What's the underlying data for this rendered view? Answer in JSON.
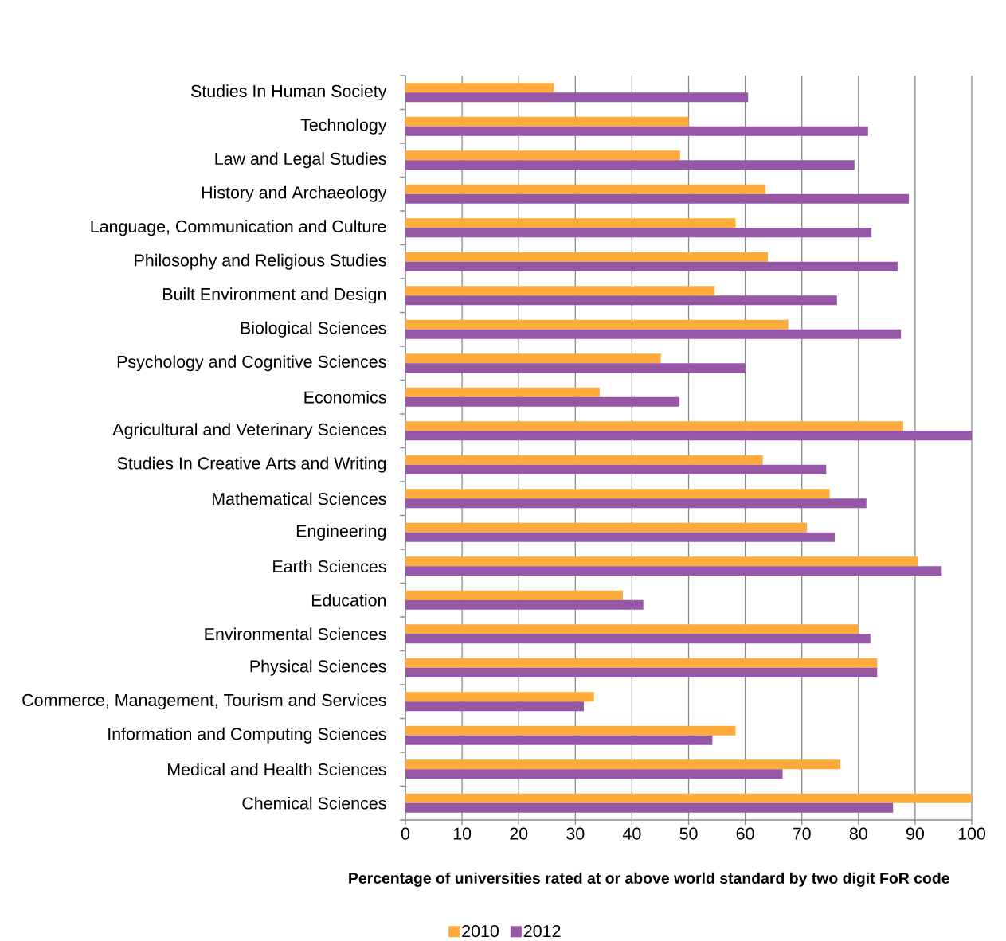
{
  "chart_data": {
    "type": "bar",
    "orientation": "horizontal",
    "xlabel": "Percentage of universities rated at or above world standard by two digit FoR code",
    "categories": [
      "Studies In Human Society",
      "Technology",
      "Law and Legal Studies",
      "History and Archaeology",
      "Language, Communication and Culture",
      "Philosophy and Religious Studies",
      "Built Environment and Design",
      "Biological Sciences",
      "Psychology and Cognitive Sciences",
      "Economics",
      "Agricultural and Veterinary Sciences",
      "Studies In Creative Arts and Writing",
      "Mathematical Sciences",
      "Engineering",
      "Earth Sciences",
      "Education",
      "Environmental Sciences",
      "Physical Sciences",
      "Commerce, Management, Tourism and Services",
      "Information and Computing Sciences",
      "Medical and Health Sciences",
      "Chemical Sciences"
    ],
    "series": [
      {
        "name": "2010",
        "color": "#ffab3b",
        "values": [
          26.2,
          50.0,
          48.5,
          63.6,
          58.3,
          64.0,
          54.6,
          67.6,
          45.1,
          34.3,
          87.9,
          63.1,
          74.9,
          70.9,
          90.5,
          38.4,
          80.0,
          83.3,
          33.3,
          58.3,
          76.8,
          100
        ]
      },
      {
        "name": "2012",
        "color": "#9657a6",
        "values": [
          60.5,
          81.7,
          79.3,
          88.9,
          82.3,
          86.9,
          76.2,
          87.5,
          60.0,
          48.4,
          100,
          74.3,
          81.4,
          75.8,
          94.7,
          42.0,
          82.1,
          83.3,
          31.5,
          54.2,
          66.6,
          86.1
        ]
      }
    ],
    "xlim": [
      0,
      100
    ],
    "xticks": [
      0,
      10,
      20,
      30,
      40,
      50,
      60,
      70,
      80,
      90,
      100
    ],
    "grid": "x",
    "legend": "bottom"
  }
}
